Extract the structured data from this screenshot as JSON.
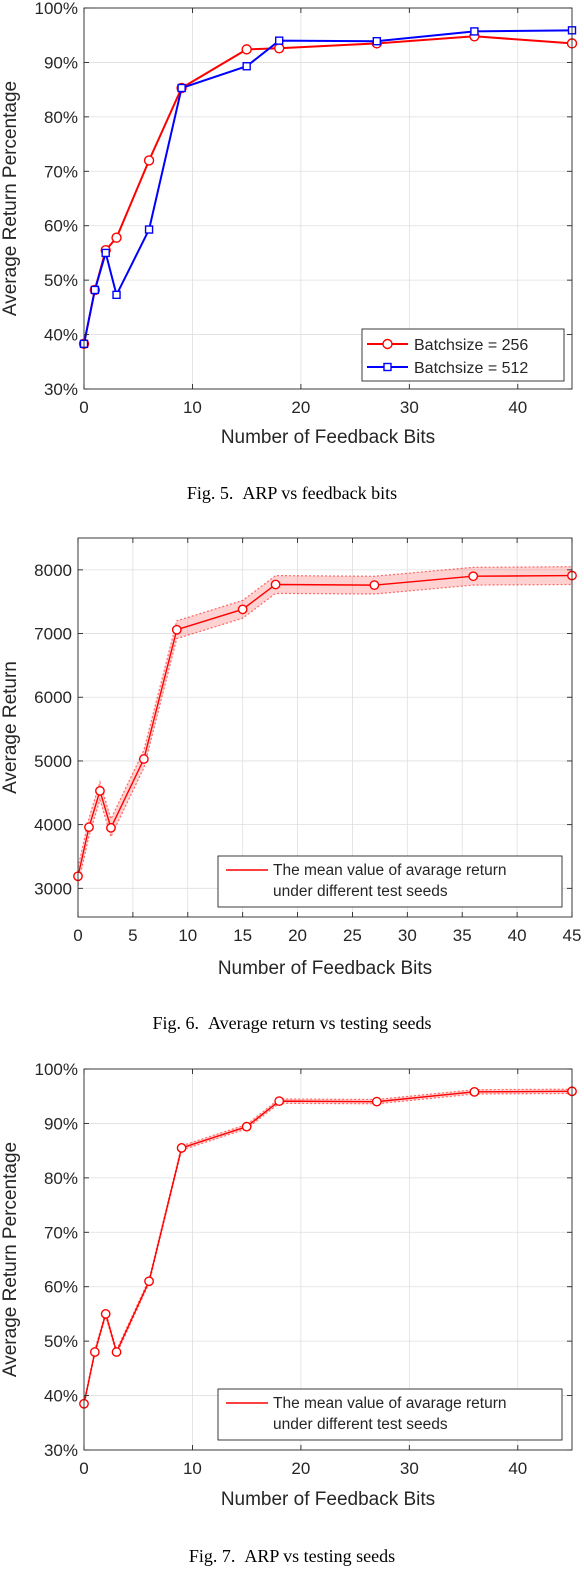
{
  "chart_data": [
    {
      "type": "line",
      "caption": "Fig. 5.  ARP vs feedback bits",
      "xlabel": "Number of Feedback Bits",
      "ylabel": "Average Return Percentage",
      "xlim": [
        0,
        45
      ],
      "ylim": [
        30,
        100
      ],
      "xticks": [
        0,
        10,
        20,
        30,
        40
      ],
      "yticks": [
        30,
        40,
        50,
        60,
        70,
        80,
        90,
        100
      ],
      "ytick_suffix": "%",
      "grid": true,
      "legend_position": "bottom-right",
      "series": [
        {
          "name": "Batchsize = 256",
          "color": "#ff0000",
          "marker": "circle",
          "x": [
            0,
            1,
            2,
            3,
            6,
            9,
            15,
            18,
            27,
            36,
            45
          ],
          "y": [
            38.3,
            48.2,
            55.5,
            57.8,
            72.0,
            85.3,
            92.4,
            92.6,
            93.5,
            94.8,
            93.5
          ]
        },
        {
          "name": "Batchsize = 512",
          "color": "#0000ff",
          "marker": "square",
          "x": [
            0,
            1,
            2,
            3,
            6,
            9,
            15,
            18,
            27,
            36,
            45
          ],
          "y": [
            38.3,
            48.2,
            55.0,
            47.3,
            59.3,
            85.3,
            89.3,
            94.0,
            93.9,
            95.7,
            95.9
          ]
        }
      ]
    },
    {
      "type": "line",
      "caption": "Fig. 6.  Average return vs testing seeds",
      "xlabel": "Number of Feedback Bits",
      "ylabel": "Average Return",
      "xlim": [
        0,
        45
      ],
      "ylim": [
        2550,
        8500
      ],
      "xticks": [
        0,
        5,
        10,
        15,
        20,
        25,
        30,
        35,
        40,
        45
      ],
      "yticks": [
        3000,
        4000,
        5000,
        6000,
        7000,
        8000
      ],
      "ytick_suffix": "",
      "grid": true,
      "legend_position": "bottom-right",
      "series": [
        {
          "name": "The mean value of avarage return|under different test seeds",
          "color": "#ff0000",
          "marker": "circle",
          "x": [
            0,
            1,
            2,
            3,
            6,
            9,
            15,
            18,
            27,
            36,
            45
          ],
          "y": [
            3190,
            3960,
            4530,
            3950,
            5030,
            7060,
            7380,
            7770,
            7760,
            7900,
            7910
          ],
          "band": 140
        }
      ]
    },
    {
      "type": "line",
      "caption": "Fig. 7.  ARP vs testing seeds",
      "xlabel": "Number of Feedback Bits",
      "ylabel": "Average Return Percentage",
      "xlim": [
        0,
        45
      ],
      "ylim": [
        30,
        100
      ],
      "xticks": [
        0,
        10,
        20,
        30,
        40
      ],
      "yticks": [
        30,
        40,
        50,
        60,
        70,
        80,
        90,
        100
      ],
      "ytick_suffix": "%",
      "grid": true,
      "legend_position": "bottom-right",
      "series": [
        {
          "name": "The mean value of avarage return|under different test seeds",
          "color": "#ff0000",
          "marker": "circle",
          "x": [
            0,
            1,
            2,
            3,
            6,
            9,
            15,
            18,
            27,
            36,
            45
          ],
          "y": [
            38.5,
            48.0,
            55.0,
            48.0,
            61.0,
            85.5,
            89.4,
            94.1,
            94.0,
            95.8,
            95.9
          ],
          "band": 0.4
        }
      ]
    }
  ]
}
